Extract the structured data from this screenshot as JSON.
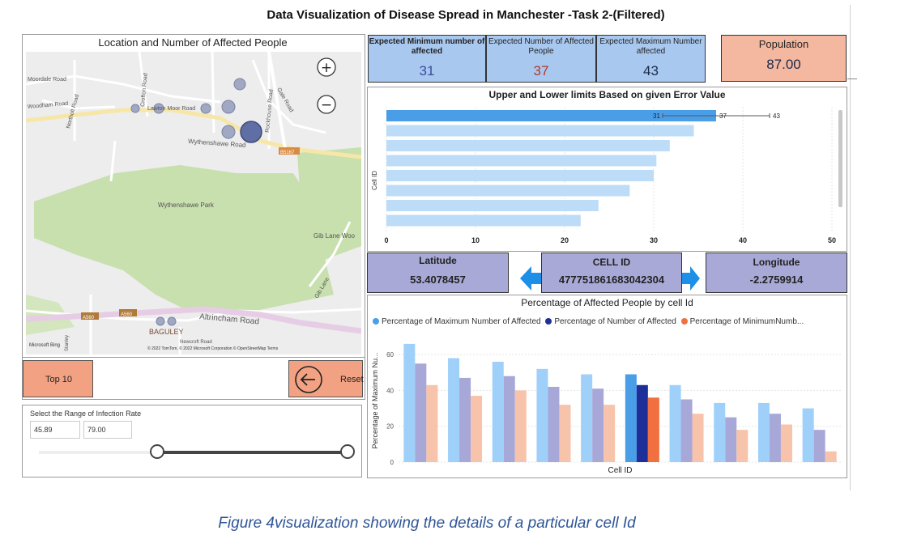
{
  "title": "Data Visualization of Disease Spread in Manchester -Task 2-(Filtered)",
  "map": {
    "title": "Location and Number of Affected People",
    "labels": {
      "moordale": "Moordale Road",
      "woodham": "Woodham Road",
      "northolt": "Northolt Road",
      "crofton": "Crofton Road",
      "lawton": "Lawton Moor Road",
      "gale": "Gale Road",
      "rockhouse": "Rockhouse Road",
      "wythenshawe_rd": "Wythenshawe Road",
      "b5167": "B5167",
      "park": "Wythenshawe Park",
      "gib_lane_woo": "Gib Lane Woo",
      "gib_lane": "Gib Lane",
      "altrincham": "Altrincham Road",
      "a560a": "A560",
      "a560b": "A560",
      "baguley": "BAGULEY",
      "stanley": "Stanley",
      "neworth": "Newcroft Road",
      "bing": "Microsoft Bing",
      "credits": "© 2022 TomTom, © 2022 Microsoft Corporation  © OpenStreetMap  Terms"
    },
    "zoom_in": "+",
    "zoom_out": "−"
  },
  "buttons": {
    "top10": "Top 10",
    "reset": "Reset",
    "back_icon": "left-arrow-circle-icon"
  },
  "slider": {
    "label": "Select the Range of Infection Rate",
    "min": "45.89",
    "max": "79.00"
  },
  "kpis": [
    {
      "label": "Expected Minimum number of affected",
      "value": "31",
      "color": "#3a4c9a"
    },
    {
      "label": "Expected Number of Affected People",
      "value": "37",
      "color": "#b03a2a"
    },
    {
      "label": "Expected Maximum Number affected",
      "value": "43",
      "color": "#1b2a4a"
    }
  ],
  "population": {
    "label": "Population",
    "value": "87.00"
  },
  "info": {
    "latitude_label": "Latitude",
    "latitude_value": "53.4078457",
    "cellid_label": "CELL ID",
    "cellid_value": "477751861683042304",
    "longitude_label": "Longitude",
    "longitude_value": "-2.2759914"
  },
  "bar_chart_title": "Upper and Lower limits Based on given Error Value",
  "bar_chart_ylabel": "Cell ID",
  "bar_chart_error_labels": [
    "31",
    "37",
    "43"
  ],
  "col_chart_title": "Percentage of Affected People by cell Id",
  "col_chart_xlabel": "Cell ID",
  "col_chart_ylabel": "Percentage of Maximum Nu...",
  "col_legend": [
    {
      "label": "Percentage of Maximum Number of Affected",
      "color": "#4a9ee8"
    },
    {
      "label": "Percentage of Number of Affected",
      "color": "#1f2f9a"
    },
    {
      "label": "Percentage of MinimumNumb...",
      "color": "#f07040"
    }
  ],
  "caption": "Figure 4visualization showing the details of a particular cell Id",
  "chart_data": [
    {
      "type": "bar",
      "orientation": "horizontal",
      "title": "Upper and Lower limits Based on given Error Value",
      "ylabel": "Cell ID",
      "xlim": [
        0,
        50
      ],
      "xticks": [
        0,
        10,
        20,
        30,
        40,
        50
      ],
      "values": [
        37,
        34.5,
        31.8,
        30.3,
        30,
        27.3,
        23.8,
        21.8
      ],
      "highlight_index": 0,
      "error_bar": {
        "low": 31,
        "mid": 37,
        "high": 43
      },
      "colors": {
        "highlight": "#4a9ee8",
        "normal": "#bcdcf7"
      }
    },
    {
      "type": "bar",
      "title": "Percentage of Affected People by cell Id",
      "xlabel": "Cell ID",
      "ylabel": "Percentage of Maximum Nu...",
      "ylim": [
        0,
        70
      ],
      "yticks": [
        0,
        20,
        40,
        60
      ],
      "highlight_index": 5,
      "series": [
        {
          "name": "Percentage of Maximum Number of Affected",
          "values": [
            66,
            58,
            56,
            52,
            49,
            49,
            43,
            33,
            33,
            30
          ],
          "color": "#9fd0fa",
          "highlight_color": "#4a9ee8"
        },
        {
          "name": "Percentage of Number of Affected",
          "values": [
            55,
            47,
            48,
            42,
            41,
            43,
            35,
            25,
            27,
            18
          ],
          "color": "#a7a7d8",
          "highlight_color": "#1f2f9a"
        },
        {
          "name": "Percentage of MinimumNumb...",
          "values": [
            43,
            37,
            40,
            32,
            32,
            36,
            27,
            18,
            21,
            6
          ],
          "color": "#f7c3ab",
          "highlight_color": "#f07040"
        }
      ]
    }
  ],
  "map_bubbles": [
    {
      "lat_rank": 1,
      "size": 18,
      "color": "#5a6aa0"
    },
    {
      "lat_rank": 2,
      "size": 10,
      "color": "#9aa3c0"
    },
    {
      "lat_rank": 3,
      "size": 10,
      "color": "#9aa3c0"
    },
    {
      "lat_rank": 4,
      "size": 9,
      "color": "#9aa3c0"
    },
    {
      "lat_rank": 5,
      "size": 8,
      "color": "#9aa3c0"
    },
    {
      "lat_rank": 6,
      "size": 8,
      "color": "#9aa3c0"
    },
    {
      "lat_rank": 7,
      "size": 7,
      "color": "#9aa3c0"
    }
  ]
}
